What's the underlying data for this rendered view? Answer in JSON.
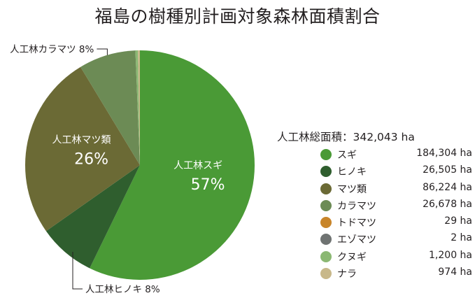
{
  "title": "福島の樹種別計画対象森林面積割合",
  "total_label": "人工林総面積：342,043 ha",
  "chart_data": {
    "type": "pie",
    "title": "福島の樹種別計画対象森林面積割合",
    "unit": "ha",
    "slices": [
      {
        "name": "人工林スギ",
        "value": 57,
        "color": "#4a9a36",
        "label_name": "人工林スギ",
        "label_pct": "57%",
        "label_style": "inside"
      },
      {
        "name": "人工林ヒノキ",
        "value": 8,
        "color": "#2f5e2e",
        "label_name": "人工林ヒノキ 8%",
        "label_pct": "",
        "label_style": "callout-bottom"
      },
      {
        "name": "人工林マツ類",
        "value": 26,
        "color": "#6b6a35",
        "label_name": "人工林マツ類",
        "label_pct": "26%",
        "label_style": "inside"
      },
      {
        "name": "人工林カラマツ",
        "value": 8,
        "color": "#6c8b55",
        "label_name": "人工林カラマツ 8%",
        "label_pct": "",
        "label_style": "callout-top"
      },
      {
        "name": "クヌギ",
        "value": 0.35,
        "color": "#8bb873",
        "label_name": "",
        "label_pct": "",
        "label_style": "none"
      },
      {
        "name": "ナラ",
        "value": 0.28,
        "color": "#c8b88a",
        "label_name": "",
        "label_pct": "",
        "label_style": "none"
      }
    ],
    "legend_position": "right",
    "legend": [
      {
        "name": "スギ",
        "value": "184,304 ha",
        "color": "#4a9a36"
      },
      {
        "name": "ヒノキ",
        "value": "26,505 ha",
        "color": "#2f5e2e"
      },
      {
        "name": "マツ類",
        "value": "86,224 ha",
        "color": "#6b6a35"
      },
      {
        "name": "カラマツ",
        "value": "26,678 ha",
        "color": "#6c8b55"
      },
      {
        "name": "トドマツ",
        "value": "29 ha",
        "color": "#c8852a"
      },
      {
        "name": "エゾマツ",
        "value": "2 ha",
        "color": "#6f7372"
      },
      {
        "name": "クヌギ",
        "value": "1,200 ha",
        "color": "#8bb873"
      },
      {
        "name": "ナラ",
        "value": "974 ha",
        "color": "#c8b88a"
      }
    ]
  }
}
